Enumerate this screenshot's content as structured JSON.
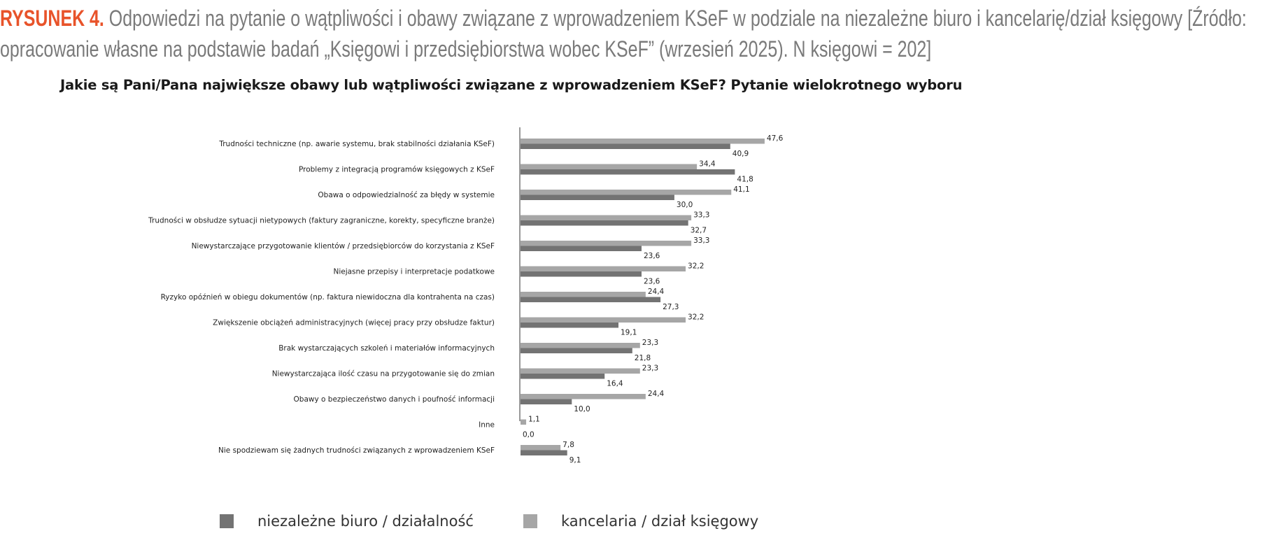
{
  "caption": {
    "figure_label": "RYSUNEK 4.",
    "text": "Odpowiedzi na pytanie o wątpliwości i obawy związane z wprowadzeniem KSeF w podziale na niezależne biuro i kancelarię/dział księgowy [Źródło: opracowanie własne na podstawie badań „Księgowi i przedsiębiorstwa wobec KSeF” (wrzesień 2025). N księgowi = 202]"
  },
  "chart_data": {
    "type": "bar",
    "orientation": "horizontal",
    "title": "Jakie są Pani/Pana największe obawy lub wątpliwości związane z wprowadzeniem KSeF? Pytanie wielokrotnego wyboru",
    "xlim": [
      0,
      50
    ],
    "grid": false,
    "legend_position": "bottom",
    "categories": [
      "Trudności techniczne (np. awarie systemu, brak stabilności działania KSeF)",
      "Problemy z integracją programów księgowych z KSeF",
      "Obawa o odpowiedzialność za błędy w systemie",
      "Trudności w obsłudze sytuacji nietypowych (faktury zagraniczne, korekty, specyficzne branże)",
      "Niewystarczające przygotowanie klientów / przedsiębiorców do korzystania z KSeF",
      "Niejasne przepisy i interpretacje podatkowe",
      "Ryzyko opóźnień w obiegu dokumentów (np. faktura niewidoczna dla kontrahenta na czas)",
      "Zwiększenie obciążeń administracyjnych (więcej pracy przy obsłudze faktur)",
      "Brak wystarczających szkoleń i materiałów informacyjnych",
      "Niewystarczająca ilość czasu na przygotowanie się do zmian",
      "Obawy o bezpieczeństwo danych i poufność informacji",
      "Inne",
      "Nie spodziewam się żadnych trudności związanych z wprowadzeniem KSeF"
    ],
    "series": [
      {
        "name": "kancelaria / dział księgowy",
        "color": "#a6a6a6",
        "values": [
          47.6,
          34.4,
          41.1,
          33.3,
          33.3,
          32.2,
          24.4,
          32.2,
          23.3,
          23.3,
          24.4,
          1.1,
          7.8
        ]
      },
      {
        "name": "niezależne biuro / działalność",
        "color": "#737373",
        "values": [
          40.9,
          41.8,
          30.0,
          32.7,
          23.6,
          23.6,
          27.3,
          19.1,
          21.8,
          16.4,
          10.0,
          0.0,
          9.1
        ]
      }
    ],
    "legend": [
      "niezależne biuro / działalność",
      "kancelaria / dział księgowy"
    ]
  }
}
